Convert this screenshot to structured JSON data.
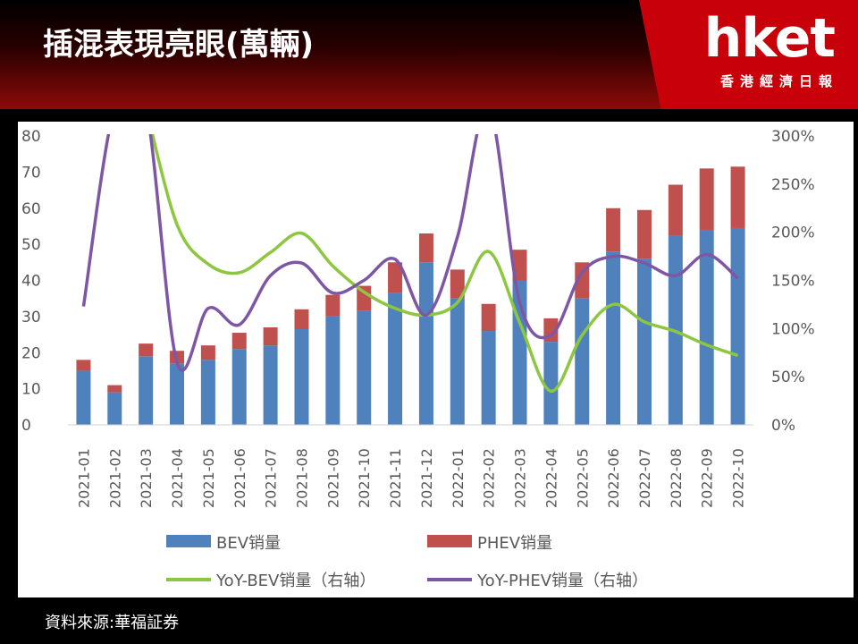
{
  "header": {
    "title": "插混表現亮眼(萬輛)",
    "brand_name": "hket",
    "brand_sub": "香港經濟日報"
  },
  "footer": {
    "source": "資料來源:華福証券"
  },
  "colors": {
    "bev": "#4f81bd",
    "phev": "#c0504d",
    "yoy_bev": "#8dc63f",
    "yoy_phev": "#7e57a4",
    "brand": "#c8000a"
  },
  "chart_data": {
    "type": "bar",
    "categories": [
      "2021-01",
      "2021-02",
      "2021-03",
      "2021-04",
      "2021-05",
      "2021-06",
      "2021-07",
      "2021-08",
      "2021-09",
      "2021-10",
      "2021-11",
      "2021-12",
      "2022-01",
      "2022-02",
      "2022-03",
      "2022-04",
      "2022-05",
      "2022-06",
      "2022-07",
      "2022-08",
      "2022-09",
      "2022-10"
    ],
    "y_left_ticks": [
      "80",
      "70",
      "60",
      "50",
      "40",
      "30",
      "20",
      "10",
      "0"
    ],
    "y_right_ticks": [
      "300%",
      "250%",
      "200%",
      "150%",
      "100%",
      "50%",
      "0%"
    ],
    "ylim_left": [
      0,
      80
    ],
    "ylim_right": [
      0,
      300
    ],
    "stacked": true,
    "series": [
      {
        "name": "BEV销量",
        "kind": "bar",
        "axis": "left",
        "values": [
          15,
          9,
          19,
          17,
          18,
          21,
          22,
          26.5,
          30,
          31.5,
          36.5,
          45,
          35,
          26,
          40,
          23,
          35,
          48,
          46,
          52.5,
          54,
          54.5
        ]
      },
      {
        "name": "PHEV销量",
        "kind": "bar",
        "axis": "left",
        "values": [
          3,
          2,
          3.5,
          3.5,
          4,
          4.5,
          5,
          5.5,
          6,
          7,
          8.5,
          8,
          8,
          7.5,
          8.5,
          6.5,
          10,
          12,
          13.5,
          14,
          17,
          17
        ]
      },
      {
        "name": "YoY-BEV销量（右轴）",
        "kind": "line",
        "axis": "right",
        "values": [
          null,
          null,
          300,
          208,
          167,
          158,
          179,
          199,
          165,
          138,
          121,
          114,
          127,
          180,
          106,
          35,
          93,
          125,
          107,
          97,
          83,
          72
        ]
      },
      {
        "name": "YoY-PHEV销量（右轴）",
        "kind": "line",
        "axis": "right",
        "values": [
          123,
          300,
          300,
          65,
          121,
          104,
          155,
          168,
          137,
          150,
          172,
          114,
          195,
          300,
          127,
          93,
          158,
          175,
          168,
          155,
          177,
          152
        ]
      }
    ],
    "legend_position": "bottom",
    "grid": false
  }
}
